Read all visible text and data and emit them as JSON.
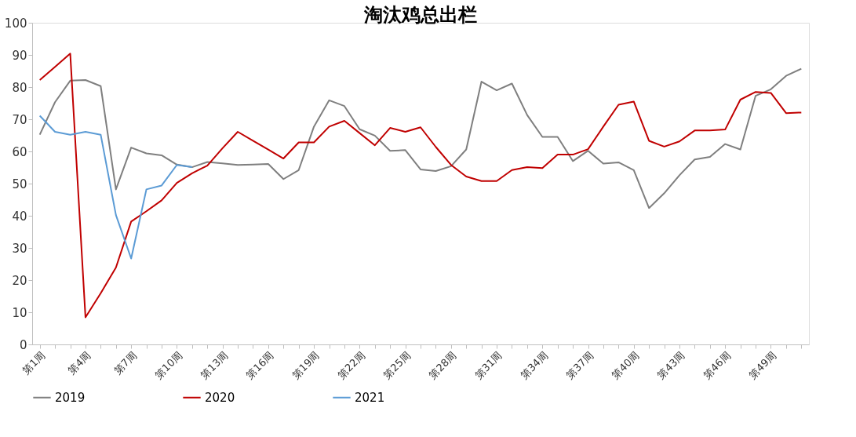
{
  "chart_data": {
    "type": "line",
    "title": "淘汰鸡总出栏",
    "categories": [
      "第1周",
      null,
      null,
      "第4周",
      null,
      null,
      "第7周",
      null,
      null,
      "第10周",
      null,
      null,
      "第13周",
      null,
      null,
      "第16周",
      null,
      null,
      "第19周",
      null,
      null,
      "第22周",
      null,
      null,
      "第25周",
      null,
      null,
      "第28周",
      null,
      null,
      "第31周",
      null,
      null,
      "第34周",
      null,
      null,
      "第37周",
      null,
      null,
      "第40周",
      null,
      null,
      "第43周",
      null,
      null,
      "第46周",
      null,
      null,
      "第49周",
      null,
      null
    ],
    "series": [
      {
        "name": "2019",
        "color": "#7f7f7f",
        "values": [
          65.2,
          75.3,
          82,
          82.2,
          80.3,
          48.2,
          61.2,
          59.4,
          58.8,
          55.9,
          55.1,
          56.7,
          56.3,
          55.8,
          55.9,
          56.1,
          51.4,
          54.2,
          67.7,
          75.9,
          74.1,
          66.9,
          64.9,
          60.2,
          60.4,
          54.4,
          53.9,
          55.4,
          60.6,
          81.7,
          79,
          81.1,
          71.3,
          64.5,
          64.5,
          57,
          60.2,
          56.2,
          56.6,
          54.2,
          42.4,
          47,
          52.6,
          57.5,
          58.3,
          62.3,
          60.6,
          77.3,
          79.3,
          83.5,
          85.7
        ]
      },
      {
        "name": "2020",
        "color": "#c00000",
        "values": [
          82.2,
          86.3,
          90.4,
          8.4,
          15.9,
          23.9,
          38.2,
          41.4,
          44.8,
          50.2,
          53.2,
          55.6,
          61,
          66.1,
          63.3,
          60.6,
          57.8,
          62.8,
          62.8,
          67.7,
          69.5,
          65.7,
          61.9,
          67.3,
          66.1,
          67.5,
          61.4,
          55.8,
          52.2,
          50.8,
          50.8,
          54.2,
          55.1,
          54.8,
          59,
          59,
          60.7,
          67.7,
          74.5,
          75.5,
          63.3,
          61.5,
          63.1,
          66.5,
          66.5,
          66.8,
          76.1,
          78.5,
          78.2,
          71.9,
          72.1
        ]
      },
      {
        "name": "2021",
        "color": "#5b9bd5",
        "values": [
          71.1,
          66.1,
          65.2,
          66.1,
          65.2,
          40.2,
          26.7,
          48.2,
          49.4,
          55.8,
          55.1,
          null,
          null,
          null,
          null,
          null,
          null,
          null,
          null,
          null,
          null,
          null,
          null,
          null,
          null,
          null,
          null,
          null,
          null,
          null,
          null,
          null,
          null,
          null,
          null,
          null,
          null,
          null,
          null,
          null,
          null,
          null,
          null,
          null,
          null,
          null,
          null,
          null,
          null,
          null,
          null
        ]
      }
    ],
    "ylim": [
      0,
      100
    ],
    "yticks": [
      0,
      10,
      20,
      30,
      40,
      50,
      60,
      70,
      80,
      90,
      100
    ],
    "grid": false,
    "legend": "bottom",
    "marker": "none",
    "line_style": "solid"
  }
}
